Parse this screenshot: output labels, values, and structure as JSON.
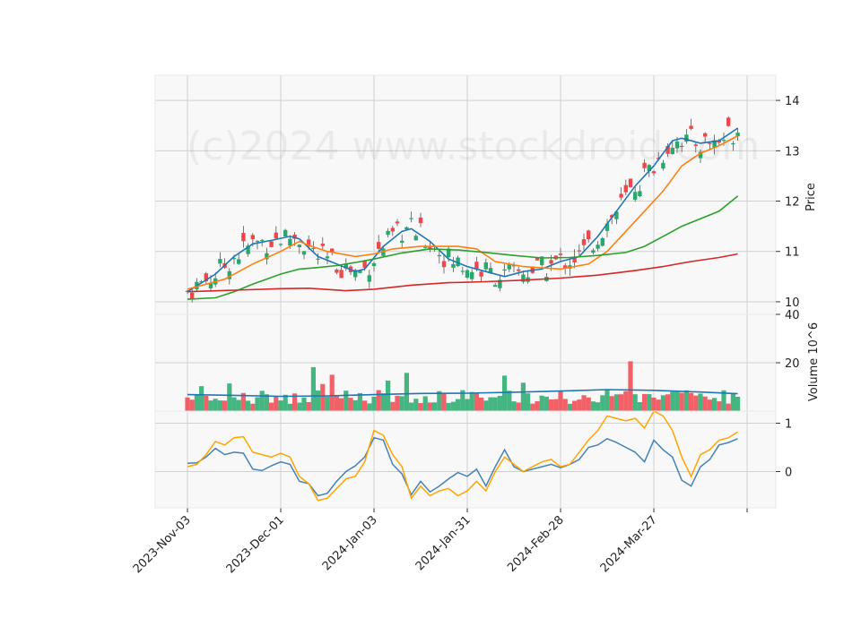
{
  "chart_data": {
    "type": "candlestick",
    "watermark": "(c)2024 www.stockdroid.com",
    "colors": {
      "up": "#26a96c",
      "down": "#f0474d",
      "panel_bg": "#f8f8f8",
      "grid": "#d0d0d0"
    },
    "x_ticks": [
      {
        "label": "2023-Nov-03",
        "index": 0
      },
      {
        "label": "2023-Dec-01",
        "index": 20
      },
      {
        "label": "2024-Jan-03",
        "index": 40
      },
      {
        "label": "2024-Jan-31",
        "index": 60
      },
      {
        "label": "2024-Feb-28",
        "index": 80
      },
      {
        "label": "2024-Mar-27",
        "index": 100
      },
      {
        "label": "",
        "index": 120
      }
    ],
    "price_panel": {
      "ylabel": "Price",
      "ylim": [
        9.75,
        14.5
      ],
      "yticks": [
        10,
        11,
        12,
        13,
        14
      ],
      "moving_averages": [
        {
          "color": "#1f77b4",
          "points": [
            [
              0,
              10.2
            ],
            [
              6,
              10.55
            ],
            [
              10,
              10.9
            ],
            [
              14,
              11.15
            ],
            [
              18,
              11.22
            ],
            [
              22,
              11.3
            ],
            [
              24,
              11.25
            ],
            [
              28,
              10.9
            ],
            [
              32,
              10.75
            ],
            [
              36,
              10.6
            ],
            [
              38,
              10.65
            ],
            [
              42,
              11.1
            ],
            [
              46,
              11.4
            ],
            [
              48,
              11.45
            ],
            [
              52,
              11.2
            ],
            [
              56,
              10.85
            ],
            [
              60,
              10.7
            ],
            [
              64,
              10.6
            ],
            [
              68,
              10.5
            ],
            [
              72,
              10.6
            ],
            [
              76,
              10.65
            ],
            [
              80,
              10.8
            ],
            [
              84,
              10.9
            ],
            [
              88,
              11.3
            ],
            [
              92,
              11.8
            ],
            [
              96,
              12.3
            ],
            [
              100,
              12.7
            ],
            [
              102,
              12.95
            ],
            [
              104,
              13.2
            ],
            [
              106,
              13.25
            ],
            [
              110,
              13.15
            ],
            [
              114,
              13.2
            ],
            [
              118,
              13.45
            ]
          ]
        },
        {
          "color": "#ff7f0e",
          "points": [
            [
              0,
              10.25
            ],
            [
              8,
              10.45
            ],
            [
              14,
              10.75
            ],
            [
              20,
              11.0
            ],
            [
              24,
              11.2
            ],
            [
              26,
              11.12
            ],
            [
              30,
              11.0
            ],
            [
              36,
              10.9
            ],
            [
              40,
              10.95
            ],
            [
              44,
              11.05
            ],
            [
              50,
              11.1
            ],
            [
              58,
              11.1
            ],
            [
              62,
              11.05
            ],
            [
              66,
              10.8
            ],
            [
              72,
              10.7
            ],
            [
              80,
              10.65
            ],
            [
              86,
              10.75
            ],
            [
              90,
              11.0
            ],
            [
              94,
              11.4
            ],
            [
              98,
              11.8
            ],
            [
              102,
              12.2
            ],
            [
              106,
              12.7
            ],
            [
              110,
              12.95
            ],
            [
              114,
              13.1
            ],
            [
              118,
              13.3
            ]
          ]
        },
        {
          "color": "#2ca02c",
          "points": [
            [
              0,
              10.05
            ],
            [
              6,
              10.08
            ],
            [
              10,
              10.2
            ],
            [
              14,
              10.35
            ],
            [
              20,
              10.55
            ],
            [
              24,
              10.65
            ],
            [
              28,
              10.68
            ],
            [
              32,
              10.72
            ],
            [
              36,
              10.78
            ],
            [
              40,
              10.85
            ],
            [
              46,
              10.97
            ],
            [
              52,
              11.05
            ],
            [
              58,
              11.03
            ],
            [
              64,
              10.98
            ],
            [
              70,
              10.92
            ],
            [
              76,
              10.87
            ],
            [
              82,
              10.88
            ],
            [
              88,
              10.92
            ],
            [
              94,
              10.98
            ],
            [
              98,
              11.1
            ],
            [
              102,
              11.3
            ],
            [
              106,
              11.5
            ],
            [
              110,
              11.65
            ],
            [
              114,
              11.8
            ],
            [
              118,
              12.1
            ]
          ]
        },
        {
          "color": "#d62728",
          "points": [
            [
              0,
              10.2
            ],
            [
              10,
              10.23
            ],
            [
              20,
              10.26
            ],
            [
              26,
              10.27
            ],
            [
              34,
              10.22
            ],
            [
              40,
              10.25
            ],
            [
              48,
              10.33
            ],
            [
              56,
              10.38
            ],
            [
              64,
              10.4
            ],
            [
              72,
              10.43
            ],
            [
              80,
              10.47
            ],
            [
              88,
              10.53
            ],
            [
              96,
              10.62
            ],
            [
              102,
              10.7
            ],
            [
              108,
              10.8
            ],
            [
              114,
              10.88
            ],
            [
              118,
              10.95
            ]
          ]
        }
      ]
    },
    "volume_panel": {
      "ylabel": "Volume  10^6",
      "ylim": [
        0,
        40
      ],
      "yticks": [
        20,
        40
      ],
      "ytick_labels": [
        "20",
        "40"
      ],
      "average": {
        "color": "#1f77b4",
        "points": [
          [
            0,
            6.8
          ],
          [
            10,
            6.5
          ],
          [
            20,
            6.1
          ],
          [
            30,
            6.3
          ],
          [
            40,
            6.8
          ],
          [
            50,
            7.3
          ],
          [
            60,
            7.4
          ],
          [
            70,
            7.8
          ],
          [
            80,
            8.3
          ],
          [
            90,
            8.9
          ],
          [
            100,
            8.6
          ],
          [
            110,
            7.9
          ],
          [
            118,
            7.2
          ]
        ]
      }
    },
    "indicator_panel": {
      "ylim": [
        -0.75,
        1.25
      ],
      "yticks": [
        0,
        1
      ],
      "series": [
        {
          "color": "#4682b4",
          "points": [
            [
              0,
              0.17
            ],
            [
              2,
              0.18
            ],
            [
              4,
              0.3
            ],
            [
              6,
              0.48
            ],
            [
              8,
              0.35
            ],
            [
              10,
              0.4
            ],
            [
              12,
              0.38
            ],
            [
              14,
              0.05
            ],
            [
              16,
              0.02
            ],
            [
              18,
              0.12
            ],
            [
              20,
              0.2
            ],
            [
              22,
              0.15
            ],
            [
              24,
              -0.2
            ],
            [
              26,
              -0.25
            ],
            [
              28,
              -0.5
            ],
            [
              30,
              -0.45
            ],
            [
              32,
              -0.2
            ],
            [
              34,
              0.0
            ],
            [
              36,
              0.12
            ],
            [
              38,
              0.3
            ],
            [
              40,
              0.7
            ],
            [
              42,
              0.65
            ],
            [
              44,
              0.15
            ],
            [
              46,
              -0.05
            ],
            [
              48,
              -0.48
            ],
            [
              50,
              -0.2
            ],
            [
              52,
              -0.42
            ],
            [
              54,
              -0.3
            ],
            [
              56,
              -0.15
            ],
            [
              58,
              -0.02
            ],
            [
              60,
              -0.1
            ],
            [
              62,
              0.05
            ],
            [
              64,
              -0.3
            ],
            [
              66,
              0.1
            ],
            [
              68,
              0.45
            ],
            [
              70,
              0.1
            ],
            [
              72,
              0.0
            ],
            [
              74,
              0.05
            ],
            [
              76,
              0.1
            ],
            [
              78,
              0.15
            ],
            [
              80,
              0.08
            ],
            [
              82,
              0.15
            ],
            [
              84,
              0.25
            ],
            [
              86,
              0.5
            ],
            [
              88,
              0.55
            ],
            [
              90,
              0.68
            ],
            [
              92,
              0.6
            ],
            [
              94,
              0.5
            ],
            [
              96,
              0.4
            ],
            [
              98,
              0.2
            ],
            [
              100,
              0.65
            ],
            [
              102,
              0.45
            ],
            [
              104,
              0.3
            ],
            [
              106,
              -0.18
            ],
            [
              108,
              -0.3
            ],
            [
              110,
              0.1
            ],
            [
              112,
              0.25
            ],
            [
              114,
              0.55
            ],
            [
              116,
              0.6
            ],
            [
              118,
              0.68
            ]
          ]
        },
        {
          "color": "#ffa500",
          "points": [
            [
              0,
              0.1
            ],
            [
              2,
              0.15
            ],
            [
              4,
              0.35
            ],
            [
              6,
              0.62
            ],
            [
              8,
              0.55
            ],
            [
              10,
              0.7
            ],
            [
              12,
              0.72
            ],
            [
              14,
              0.4
            ],
            [
              16,
              0.35
            ],
            [
              18,
              0.3
            ],
            [
              20,
              0.38
            ],
            [
              22,
              0.3
            ],
            [
              24,
              -0.1
            ],
            [
              26,
              -0.25
            ],
            [
              28,
              -0.6
            ],
            [
              30,
              -0.55
            ],
            [
              32,
              -0.35
            ],
            [
              34,
              -0.15
            ],
            [
              36,
              -0.1
            ],
            [
              38,
              0.2
            ],
            [
              40,
              0.85
            ],
            [
              42,
              0.75
            ],
            [
              44,
              0.35
            ],
            [
              46,
              0.1
            ],
            [
              48,
              -0.55
            ],
            [
              50,
              -0.3
            ],
            [
              52,
              -0.5
            ],
            [
              54,
              -0.4
            ],
            [
              56,
              -0.35
            ],
            [
              58,
              -0.5
            ],
            [
              60,
              -0.4
            ],
            [
              62,
              -0.2
            ],
            [
              64,
              -0.4
            ],
            [
              66,
              0.0
            ],
            [
              68,
              0.3
            ],
            [
              70,
              0.15
            ],
            [
              72,
              0.0
            ],
            [
              74,
              0.1
            ],
            [
              76,
              0.2
            ],
            [
              78,
              0.25
            ],
            [
              80,
              0.1
            ],
            [
              82,
              0.15
            ],
            [
              84,
              0.4
            ],
            [
              86,
              0.65
            ],
            [
              88,
              0.85
            ],
            [
              90,
              1.15
            ],
            [
              92,
              1.1
            ],
            [
              94,
              1.05
            ],
            [
              96,
              1.1
            ],
            [
              98,
              0.9
            ],
            [
              100,
              1.25
            ],
            [
              102,
              1.15
            ],
            [
              104,
              0.85
            ],
            [
              106,
              0.3
            ],
            [
              108,
              -0.1
            ],
            [
              110,
              0.35
            ],
            [
              112,
              0.45
            ],
            [
              114,
              0.65
            ],
            [
              116,
              0.7
            ],
            [
              118,
              0.82
            ]
          ]
        }
      ]
    }
  }
}
